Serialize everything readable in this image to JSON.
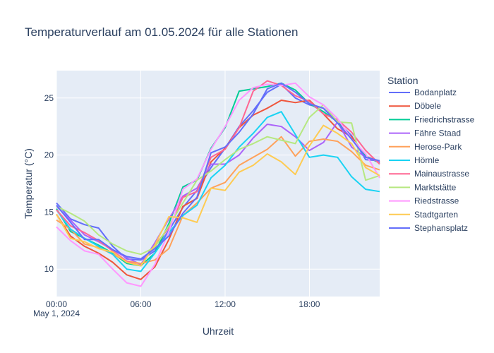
{
  "chart_data": {
    "type": "line",
    "title": "Temperaturverlauf am 01.05.2024 für alle Stationen",
    "xlabel": "Uhrzeit",
    "ylabel": "Temperatur (°C)",
    "date_label": "May 1, 2024",
    "x_ticks": [
      "00:00",
      "06:00",
      "12:00",
      "18:00"
    ],
    "y_ticks": [
      "10",
      "15",
      "20",
      "25"
    ],
    "xlim": [
      0,
      23
    ],
    "ylim": [
      7.6,
      27.4
    ],
    "grid": true,
    "legend_title": "Station",
    "legend_position": "right",
    "x": [
      0,
      1,
      2,
      3,
      4,
      5,
      6,
      7,
      8,
      9,
      10,
      11,
      12,
      13,
      14,
      15,
      16,
      17,
      18,
      19,
      20,
      21,
      22,
      23
    ],
    "series": [
      {
        "name": "Bodanplatz",
        "color": "#636efa",
        "values": [
          15.8,
          14.4,
          13.9,
          13.6,
          12.0,
          10.9,
          10.8,
          11.6,
          13.4,
          15.4,
          16.9,
          18.9,
          20.6,
          22.5,
          23.9,
          25.5,
          26.2,
          25.0,
          24.4,
          24.1,
          22.9,
          21.7,
          19.6,
          19.5
        ]
      },
      {
        "name": "Döbele",
        "color": "#EF553B",
        "values": [
          14.8,
          12.9,
          12.0,
          11.4,
          10.6,
          9.5,
          9.1,
          10.2,
          12.6,
          15.5,
          16.2,
          19.4,
          20.6,
          22.4,
          23.5,
          24.1,
          24.8,
          24.6,
          24.8,
          23.6,
          22.3,
          21.6,
          19.9,
          19.4
        ]
      },
      {
        "name": "Friedrichstrasse",
        "color": "#00cc96",
        "values": [
          15.3,
          13.3,
          12.7,
          12.1,
          11.4,
          10.5,
          10.3,
          11.4,
          14.0,
          17.2,
          17.8,
          20.6,
          22.4,
          25.6,
          25.8,
          26.0,
          26.3,
          25.7,
          24.5,
          23.8,
          22.9,
          21.4,
          19.9,
          19.3
        ]
      },
      {
        "name": "Fähre Staad",
        "color": "#ab63fa",
        "values": [
          15.5,
          14.3,
          13.0,
          12.4,
          11.7,
          11.0,
          10.4,
          12.3,
          14.4,
          16.4,
          17.1,
          19.2,
          19.2,
          20.0,
          21.5,
          22.7,
          22.5,
          21.6,
          20.4,
          21.1,
          22.9,
          20.7,
          19.8,
          19.4
        ]
      },
      {
        "name": "Herose-Park",
        "color": "#FFA15A",
        "values": [
          14.3,
          13.5,
          12.2,
          11.9,
          11.3,
          10.7,
          10.5,
          10.8,
          11.8,
          14.7,
          15.8,
          17.1,
          17.6,
          19.1,
          19.8,
          20.5,
          21.6,
          19.9,
          21.2,
          21.4,
          21.2,
          20.3,
          19.1,
          18.7
        ]
      },
      {
        "name": "Hörnle",
        "color": "#19d3f3",
        "values": [
          15.2,
          13.5,
          12.7,
          12.0,
          11.3,
          10.0,
          9.8,
          11.4,
          13.2,
          14.7,
          15.6,
          18.0,
          19.1,
          20.7,
          21.9,
          23.3,
          23.8,
          21.8,
          19.8,
          20.0,
          19.8,
          18.1,
          17.0,
          16.8
        ]
      },
      {
        "name": "Mainaustrasse",
        "color": "#FF6692",
        "values": [
          15.2,
          13.8,
          13.2,
          12.5,
          11.6,
          10.7,
          10.3,
          12.1,
          13.6,
          16.3,
          16.8,
          19.8,
          20.5,
          22.4,
          25.6,
          26.5,
          26.1,
          25.2,
          24.7,
          23.6,
          23.1,
          22.0,
          20.4,
          19.2
        ]
      },
      {
        "name": "Marktstätte",
        "color": "#B6E880",
        "values": [
          15.5,
          14.9,
          14.2,
          13.0,
          12.2,
          11.6,
          11.3,
          11.9,
          13.8,
          15.8,
          17.8,
          18.6,
          19.6,
          20.5,
          21.0,
          21.6,
          21.3,
          21.0,
          23.3,
          24.4,
          22.9,
          22.8,
          17.8,
          18.2
        ]
      },
      {
        "name": "Riedstrasse",
        "color": "#FF97FF",
        "values": [
          13.7,
          12.5,
          11.6,
          11.3,
          10.0,
          8.8,
          8.5,
          10.4,
          13.3,
          17.0,
          17.9,
          20.5,
          22.5,
          24.8,
          25.9,
          26.2,
          26.1,
          26.3,
          25.1,
          24.4,
          23.2,
          21.4,
          20.1,
          18.0
        ]
      },
      {
        "name": "Stadtgarten",
        "color": "#FECB52",
        "values": [
          14.8,
          12.7,
          12.4,
          11.8,
          11.5,
          10.6,
          10.3,
          12.1,
          14.6,
          14.5,
          14.1,
          17.1,
          16.9,
          18.5,
          19.1,
          20.1,
          19.4,
          18.3,
          20.8,
          22.6,
          21.9,
          21.0,
          18.9,
          18.2
        ]
      },
      {
        "name": "Stephansplatz",
        "color": "#636efa",
        "values": [
          15.6,
          14.1,
          12.6,
          12.6,
          11.7,
          11.1,
          10.9,
          11.8,
          12.9,
          14.9,
          16.3,
          20.2,
          20.7,
          22.0,
          23.6,
          25.8,
          26.3,
          25.5,
          24.5,
          24.1,
          22.8,
          21.4,
          19.8,
          19.5
        ]
      }
    ]
  }
}
